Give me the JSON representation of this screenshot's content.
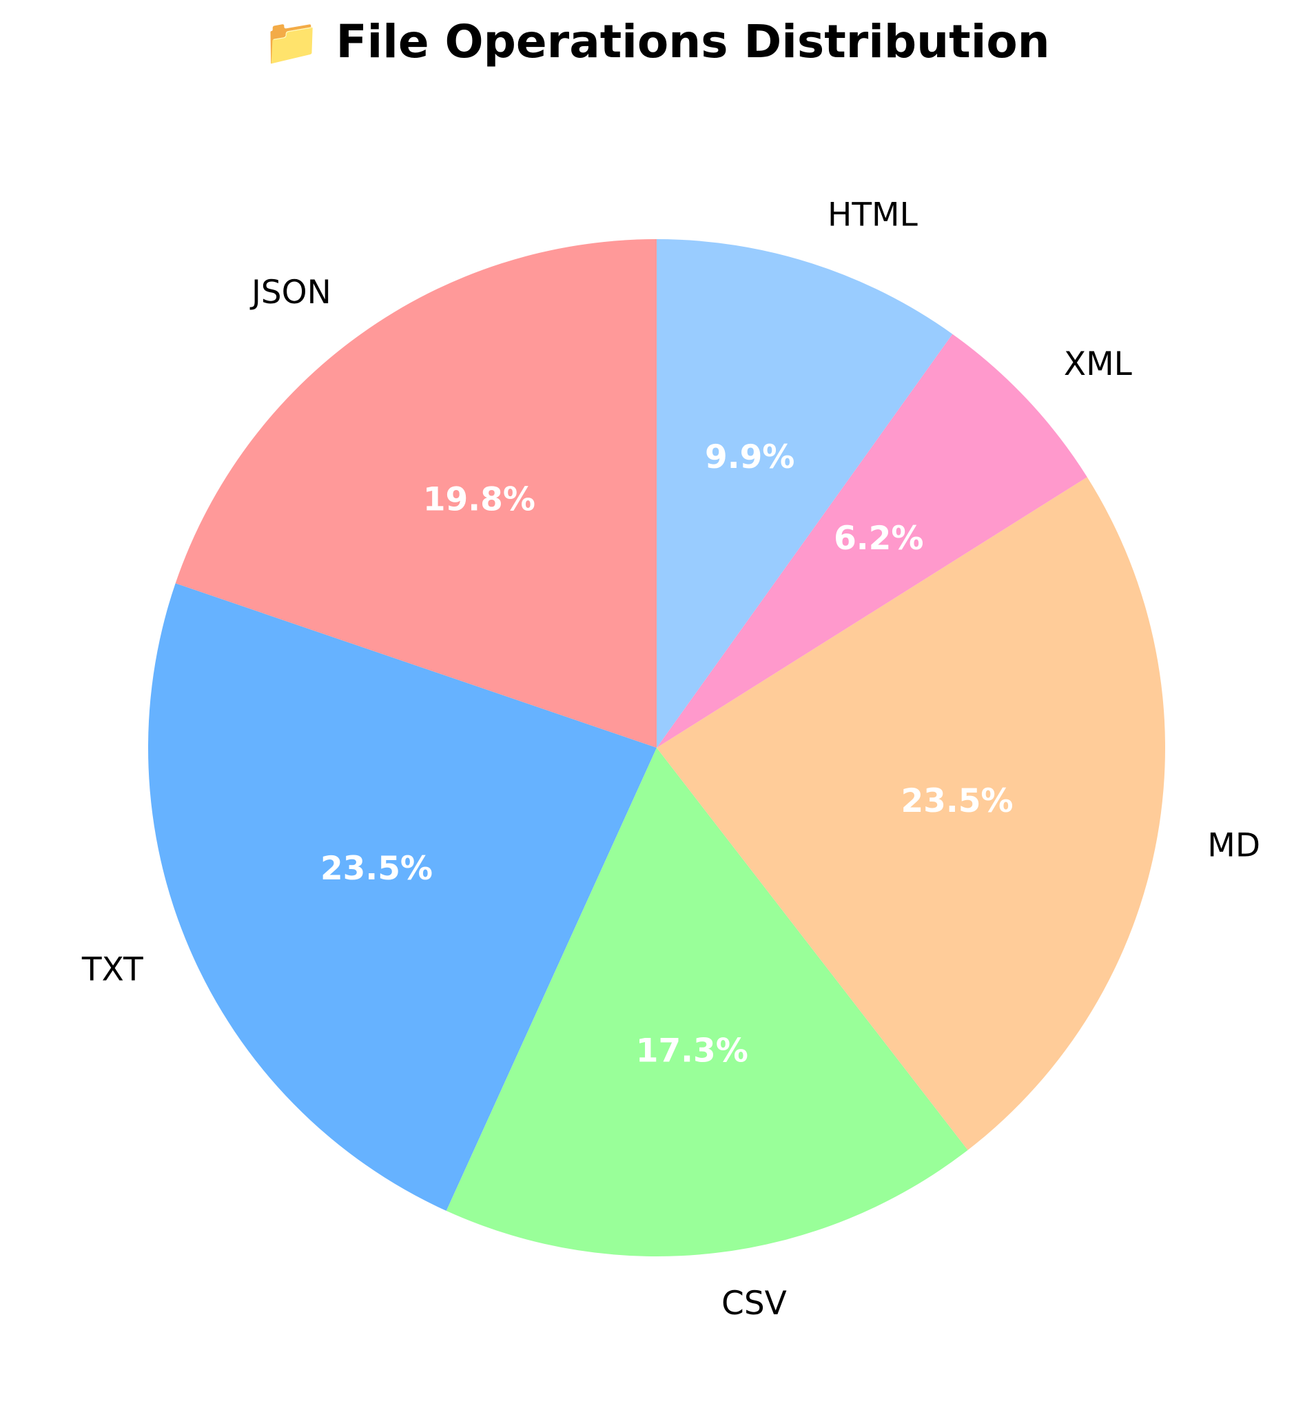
{
  "chart_data": {
    "type": "pie",
    "title": "📁 File Operations Distribution",
    "categories": [
      "JSON",
      "TXT",
      "CSV",
      "MD",
      "XML",
      "HTML"
    ],
    "values": [
      19.8,
      23.5,
      17.3,
      23.5,
      6.2,
      9.9
    ],
    "value_labels": [
      "19.8%",
      "23.5%",
      "17.3%",
      "23.5%",
      "6.2%",
      "9.9%"
    ],
    "colors": [
      "#ff9999",
      "#66b2ff",
      "#99ff99",
      "#ffcc99",
      "#ff99cc",
      "#99ccff"
    ],
    "start_angle_degrees": 90,
    "direction": "counterclockwise",
    "legend": "none"
  }
}
